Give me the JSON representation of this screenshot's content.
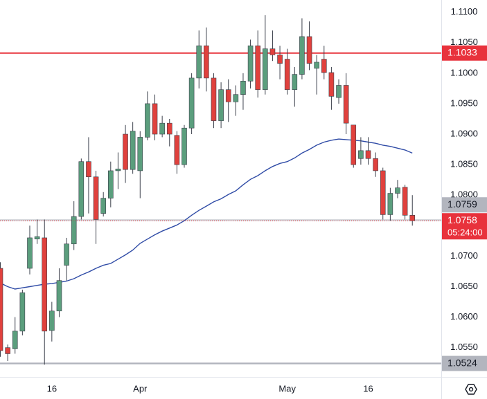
{
  "chart_data": {
    "type": "candlestick",
    "categories": [
      null,
      null,
      null,
      null,
      null,
      null,
      null,
      "16",
      null,
      null,
      null,
      null,
      null,
      null,
      null,
      null,
      null,
      null,
      null,
      "Apr",
      null,
      null,
      null,
      null,
      null,
      null,
      null,
      null,
      null,
      null,
      null,
      null,
      null,
      null,
      null,
      null,
      null,
      null,
      null,
      "May",
      null,
      null,
      null,
      null,
      null,
      null,
      null,
      null,
      null,
      null,
      "16",
      null,
      null,
      null,
      null,
      null,
      null
    ],
    "open": [
      1.068,
      1.055,
      1.0548,
      1.0577,
      1.068,
      1.0728,
      1.073,
      1.0578,
      1.061,
      1.0685,
      1.072,
      1.0765,
      1.0855,
      1.083,
      1.077,
      1.0795,
      1.084,
      1.09,
      1.0842,
      1.084,
      1.0895,
      1.095,
      1.09,
      1.0918,
      1.0898,
      1.085,
      1.091,
      1.0992,
      1.1045,
      1.0992,
      1.0922,
      1.0973,
      1.0953,
      1.0965,
      1.0987,
      1.1045,
      1.0973,
      1.104,
      1.103,
      1.1023,
      1.0973,
      1.0998,
      1.106,
      1.1008,
      1.1023,
      1.1001,
      1.096,
      1.098,
      1.0915,
      1.086,
      1.0873,
      1.086,
      1.084,
      1.0768,
      1.0803,
      1.0813,
      1.0767
    ],
    "high": [
      1.069,
      1.0555,
      1.06,
      1.0645,
      1.075,
      1.076,
      1.076,
      1.0625,
      1.068,
      1.073,
      1.079,
      1.086,
      1.0895,
      1.084,
      1.0805,
      1.0855,
      1.087,
      1.0915,
      1.092,
      1.0905,
      1.097,
      1.0965,
      1.093,
      1.0925,
      1.0905,
      1.0915,
      1.1,
      1.107,
      1.1075,
      1.1,
      1.0985,
      1.099,
      1.098,
      1.1,
      1.1055,
      1.107,
      1.1095,
      1.107,
      1.1045,
      1.104,
      1.101,
      1.109,
      1.1085,
      1.103,
      1.1045,
      1.101,
      1.099,
      1.1,
      1.0915,
      1.0895,
      1.0895,
      1.087,
      1.0845,
      1.0812,
      1.0825,
      1.0817,
      1.08
    ],
    "low": [
      1.0535,
      1.0528,
      1.054,
      1.057,
      1.067,
      1.072,
      1.0522,
      1.056,
      1.06,
      1.066,
      1.071,
      1.076,
      1.077,
      1.072,
      1.0765,
      1.078,
      1.081,
      1.082,
      1.0835,
      1.0795,
      1.089,
      1.089,
      1.0895,
      1.088,
      1.0835,
      1.0845,
      1.09,
      1.0975,
      1.097,
      1.091,
      1.091,
      1.092,
      1.093,
      1.094,
      1.0975,
      1.096,
      1.0965,
      1.102,
      1.099,
      1.0965,
      1.0945,
      1.099,
      1.1005,
      1.0965,
      1.099,
      1.094,
      1.095,
      1.09,
      1.0845,
      1.085,
      1.085,
      1.083,
      1.076,
      1.0758,
      1.0795,
      1.076,
      1.075
    ],
    "close": [
      1.0545,
      1.054,
      1.0577,
      1.064,
      1.073,
      1.0732,
      1.0577,
      1.061,
      1.066,
      1.072,
      1.0765,
      1.0855,
      1.083,
      1.076,
      1.0795,
      1.084,
      1.0843,
      1.0842,
      1.0905,
      1.0895,
      1.095,
      1.09,
      1.0918,
      1.09,
      1.085,
      1.091,
      1.0992,
      1.1045,
      1.0992,
      1.0922,
      1.0973,
      1.0953,
      1.0965,
      1.0987,
      1.1045,
      1.0973,
      1.104,
      1.103,
      1.1016,
      1.0973,
      1.0998,
      1.106,
      1.1016,
      1.1018,
      1.1001,
      1.0962,
      1.098,
      1.0918,
      1.085,
      1.0873,
      1.086,
      1.084,
      1.0768,
      1.0803,
      1.0812,
      1.0767,
      1.0758
    ],
    "up_color": "#5b9e7d",
    "down_color": "#e0413d",
    "moving_average": {
      "color": "#2f4ba6",
      "values": [
        1.0656,
        1.065,
        1.0646,
        1.0648,
        1.065,
        1.0652,
        1.0654,
        1.0655,
        1.0657,
        1.0659,
        1.0663,
        1.0669,
        1.0674,
        1.068,
        1.0685,
        1.0688,
        1.0695,
        1.0702,
        1.071,
        1.0721,
        1.0728,
        1.0735,
        1.0741,
        1.0746,
        1.0751,
        1.0758,
        1.0767,
        1.0775,
        1.0782,
        1.0789,
        1.0794,
        1.0801,
        1.0807,
        1.0817,
        1.0826,
        1.0832,
        1.084,
        1.0847,
        1.0852,
        1.0855,
        1.0861,
        1.0869,
        1.0875,
        1.0882,
        1.0887,
        1.089,
        1.0892,
        1.0891,
        1.089,
        1.0889,
        1.0887,
        1.0885,
        1.0882,
        1.088,
        1.0877,
        1.0874,
        1.0869
      ]
    },
    "levels": [
      {
        "value": 1.1033,
        "label": "1.1033",
        "color": "#e8323c",
        "text_color": "#ffffff"
      },
      {
        "value": 1.0759,
        "label": "1.0759",
        "color": "#b2b5be",
        "text_color": "#131722"
      },
      {
        "value": 1.0524,
        "label": "1.0524",
        "color": "#b2b5be",
        "text_color": "#131722"
      }
    ],
    "last_price": {
      "value": 1.0758,
      "label": "1.0758",
      "countdown": "05:24:00",
      "color": "#e8323c"
    },
    "ylim": [
      1.0502,
      1.112
    ],
    "yticks": [
      {
        "value": 1.11,
        "label": "1.1100"
      },
      {
        "value": 1.105,
        "label": "1.1050"
      },
      {
        "value": 1.1,
        "label": "1.1000"
      },
      {
        "value": 1.095,
        "label": "1.0950"
      },
      {
        "value": 1.09,
        "label": "1.0900"
      },
      {
        "value": 1.085,
        "label": "1.0850"
      },
      {
        "value": 1.08,
        "label": "1.0800"
      },
      {
        "value": 1.075,
        "label": "1.0750"
      },
      {
        "value": 1.07,
        "label": "1.0700"
      },
      {
        "value": 1.065,
        "label": "1.0650"
      },
      {
        "value": 1.06,
        "label": "1.0600"
      },
      {
        "value": 1.055,
        "label": "1.0550"
      }
    ],
    "grid": false
  }
}
